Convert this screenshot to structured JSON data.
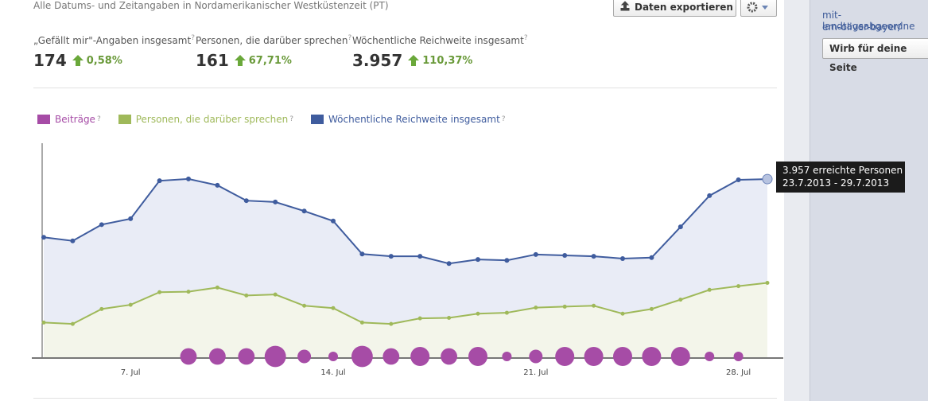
{
  "header": {
    "timezone_note": "Alle Datums- und Zeitangaben in Nordamerikanischer Westküstenzeit (PT)",
    "export_button": "Daten exportieren"
  },
  "help": "?",
  "stats": [
    {
      "label": "„Gefällt mir\"-Angaben insgesamt",
      "value": "174",
      "change": "0,58%"
    },
    {
      "label": "Personen, die darüber sprechen",
      "value": "161",
      "change": "67,71%"
    },
    {
      "label": "Wöchentliche Reichweite insgesamt",
      "value": "3.957",
      "change": "110,37%"
    }
  ],
  "sidebar": {
    "links": [
      "mit-landtagsabgeordne",
      "em-oliver-bayer/"
    ],
    "button": "Wirb für deine Seite"
  },
  "chart_data": {
    "type": "line",
    "categories": [
      null,
      null,
      null,
      "7. Jul",
      null,
      null,
      null,
      null,
      null,
      null,
      "14. Jul",
      null,
      null,
      null,
      null,
      null,
      null,
      "21. Jul",
      null,
      null,
      null,
      null,
      null,
      null,
      "28. Jul",
      null
    ],
    "series": [
      {
        "name": "Beiträge",
        "color": "#a64ca6",
        "kind": "bubble",
        "values": [
          0,
          0,
          0,
          0,
          0,
          3,
          3,
          3,
          5,
          2,
          1,
          5,
          3,
          4,
          3,
          4,
          1,
          2,
          4,
          4,
          4,
          4,
          4,
          1,
          1,
          0
        ]
      },
      {
        "name": "Personen, die darüber sprechen",
        "color": "#9fb95a",
        "fill": "#f3f5ea",
        "kind": "area",
        "axis": "y2",
        "values": [
          76,
          73,
          105,
          114,
          141,
          142,
          151,
          134,
          136,
          112,
          107,
          76,
          73,
          85,
          86,
          95,
          97,
          108,
          110,
          112,
          95,
          105,
          125,
          146,
          154,
          161
        ]
      },
      {
        "name": "Wöchentliche Reichweite insgesamt",
        "color": "#3f5c9e",
        "fill": "#e9ecf6",
        "kind": "area",
        "values": [
          2670,
          2590,
          2950,
          3080,
          3920,
          3960,
          3820,
          3480,
          3450,
          3250,
          3030,
          2300,
          2250,
          2250,
          2090,
          2180,
          2160,
          2290,
          2270,
          2250,
          2200,
          2220,
          2900,
          3590,
          3940,
          3957
        ]
      }
    ],
    "ylim": [
      0,
      4750
    ],
    "y2lim": [
      0,
      460
    ],
    "tooltip": [
      "3.957 erreichte Personen",
      "23.7.2013 - 29.7.2013"
    ]
  }
}
